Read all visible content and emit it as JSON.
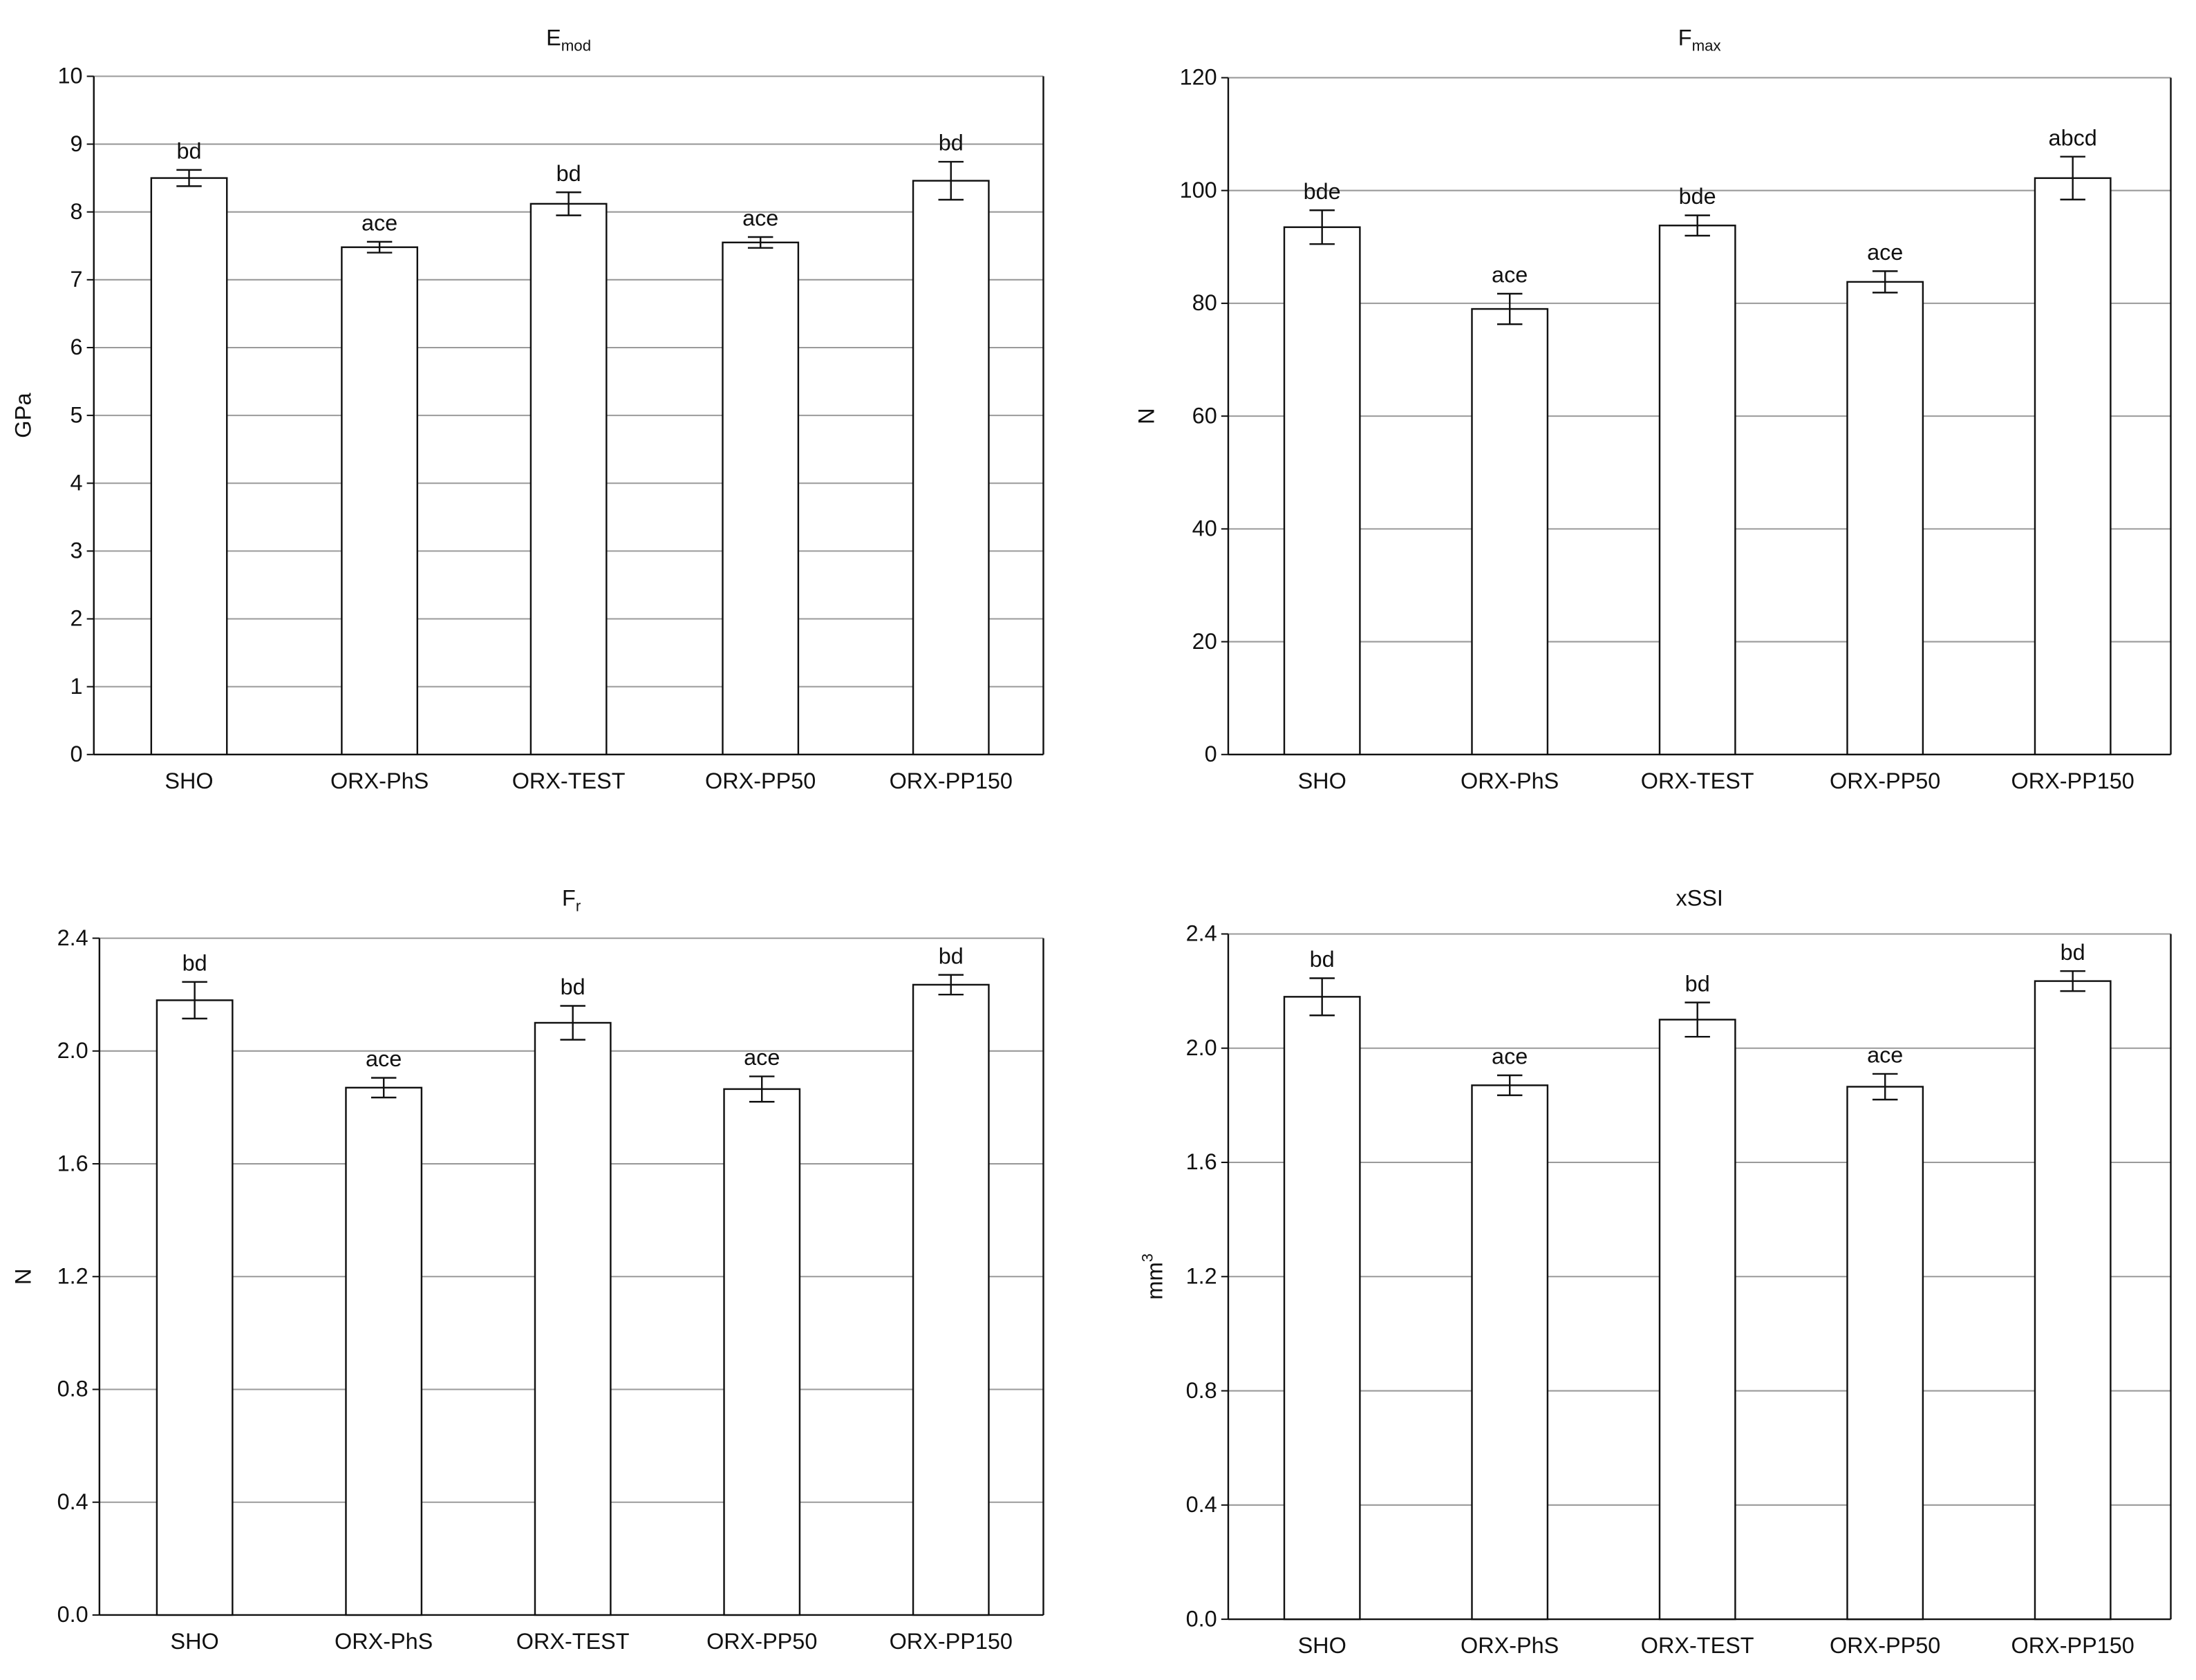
{
  "chart_data": [
    {
      "type": "bar",
      "title": "E",
      "title_sub": "mod",
      "ylabel": "GPa",
      "categories": [
        "SHO",
        "ORX-PhS",
        "ORX-TEST",
        "ORX-PP50",
        "ORX-PP150"
      ],
      "values": [
        8.5,
        7.48,
        8.12,
        7.55,
        8.46
      ],
      "errors": [
        0.12,
        0.08,
        0.17,
        0.08,
        0.28
      ],
      "annotations": [
        "bd",
        "ace",
        "bd",
        "ace",
        "bd"
      ],
      "ylim": [
        0,
        10
      ],
      "yticks": [
        0,
        1,
        2,
        3,
        4,
        5,
        6,
        7,
        8,
        9,
        10
      ],
      "grid": true,
      "color": "#ffffff"
    },
    {
      "type": "bar",
      "title": "F",
      "title_sub": "max",
      "ylabel": "N",
      "categories": [
        "SHO",
        "ORX-PhS",
        "ORX-TEST",
        "ORX-PP50",
        "ORX-PP150"
      ],
      "values": [
        93.5,
        79,
        93.8,
        83.8,
        102.2
      ],
      "errors": [
        3,
        2.7,
        1.8,
        1.9,
        3.8
      ],
      "annotations": [
        "bde",
        "ace",
        "bde",
        "ace",
        "abcd"
      ],
      "ylim": [
        0,
        120
      ],
      "yticks": [
        0,
        20,
        40,
        60,
        80,
        100,
        120
      ],
      "grid": true,
      "color": "#ffffff"
    },
    {
      "type": "bar",
      "title": "F",
      "title_sub": "r",
      "ylabel": "N",
      "categories": [
        "SHO",
        "ORX-PhS",
        "ORX-TEST",
        "ORX-PP50",
        "ORX-PP150"
      ],
      "values": [
        2.18,
        1.87,
        2.1,
        1.865,
        2.235
      ],
      "errors": [
        0.065,
        0.035,
        0.06,
        0.045,
        0.035
      ],
      "annotations": [
        "bd",
        "ace",
        "bd",
        "ace",
        "bd"
      ],
      "ylim": [
        0,
        2.4
      ],
      "yticks": [
        {
          "value": 0,
          "label": "0.0"
        },
        0.4,
        0.8,
        1.2,
        1.6,
        {
          "value": 2,
          "label": "2.0"
        },
        2.4
      ],
      "grid": true,
      "color": "#ffffff"
    },
    {
      "type": "bar",
      "title": "xSSI",
      "ylabel": "mm",
      "ylabel_sup": "3",
      "categories": [
        "SHO",
        "ORX-PhS",
        "ORX-TEST",
        "ORX-PP50",
        "ORX-PP150"
      ],
      "values": [
        2.18,
        1.87,
        2.1,
        1.865,
        2.235
      ],
      "errors": [
        0.065,
        0.035,
        0.06,
        0.045,
        0.035
      ],
      "annotations": [
        "bd",
        "ace",
        "bd",
        "ace",
        "bd"
      ],
      "ylim": [
        0,
        2.4
      ],
      "yticks": [
        {
          "value": 0,
          "label": "0.0"
        },
        0.4,
        0.8,
        1.2,
        1.6,
        {
          "value": 2,
          "label": "2.0"
        },
        2.4
      ],
      "grid": true,
      "color": "#ffffff"
    }
  ]
}
